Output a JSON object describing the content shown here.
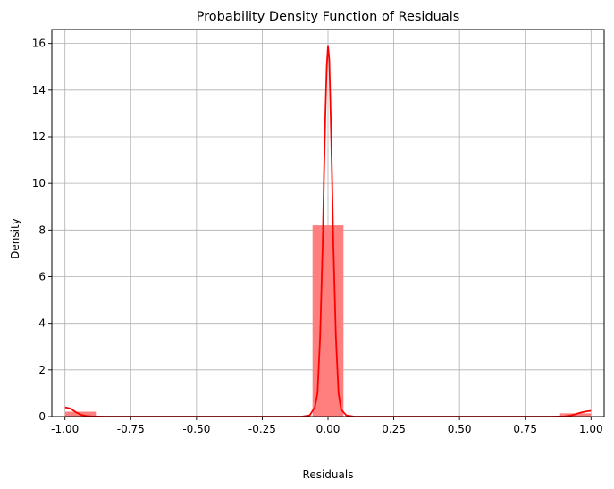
{
  "chart_data": {
    "type": "bar",
    "title": "Probability Density Function of Residuals",
    "xlabel": "Residuals",
    "ylabel": "Density",
    "xlim": [
      -1.05,
      1.05
    ],
    "ylim": [
      0,
      16.6
    ],
    "xticks": [
      -1.0,
      -0.75,
      -0.5,
      -0.25,
      0.0,
      0.25,
      0.5,
      0.75,
      1.0
    ],
    "xtick_labels": [
      "-1.00",
      "-0.75",
      "-0.50",
      "-0.25",
      "0.00",
      "0.25",
      "0.50",
      "0.75",
      "1.00"
    ],
    "yticks": [
      0,
      2,
      4,
      6,
      8,
      10,
      12,
      14,
      16
    ],
    "ytick_labels": [
      "0",
      "2",
      "4",
      "6",
      "8",
      "10",
      "12",
      "14",
      "16"
    ],
    "grid": true,
    "bin_width": 0.1176,
    "histogram": [
      {
        "x0": -1.0,
        "x1": -0.8824,
        "density": 0.21
      },
      {
        "x0": -0.0588,
        "x1": 0.0588,
        "density": 8.2
      },
      {
        "x0": 0.8824,
        "x1": 1.0,
        "density": 0.14
      }
    ],
    "kde": {
      "x": [
        -1.0,
        -0.98,
        -0.96,
        -0.94,
        -0.92,
        -0.9,
        -0.85,
        -0.5,
        -0.1,
        -0.07,
        -0.05,
        -0.04,
        -0.03,
        -0.02,
        -0.015,
        -0.01,
        -0.005,
        0.0,
        0.005,
        0.01,
        0.015,
        0.02,
        0.03,
        0.04,
        0.05,
        0.07,
        0.1,
        0.5,
        0.85,
        0.9,
        0.92,
        0.94,
        0.96,
        0.98,
        1.0
      ],
      "y": [
        0.4,
        0.35,
        0.2,
        0.08,
        0.03,
        0.01,
        0.0,
        0.0,
        0.0,
        0.05,
        0.4,
        1.0,
        3.4,
        7.5,
        10.5,
        13.0,
        15.0,
        15.9,
        15.3,
        13.0,
        10.5,
        7.5,
        3.4,
        1.0,
        0.3,
        0.05,
        0.0,
        0.0,
        0.0,
        0.01,
        0.04,
        0.1,
        0.17,
        0.22,
        0.25
      ]
    },
    "colors": {
      "bar_fill": "#ff7f7f",
      "kde_line": "#ff0000",
      "grid": "#b0b0b0",
      "axis": "#000000"
    }
  }
}
